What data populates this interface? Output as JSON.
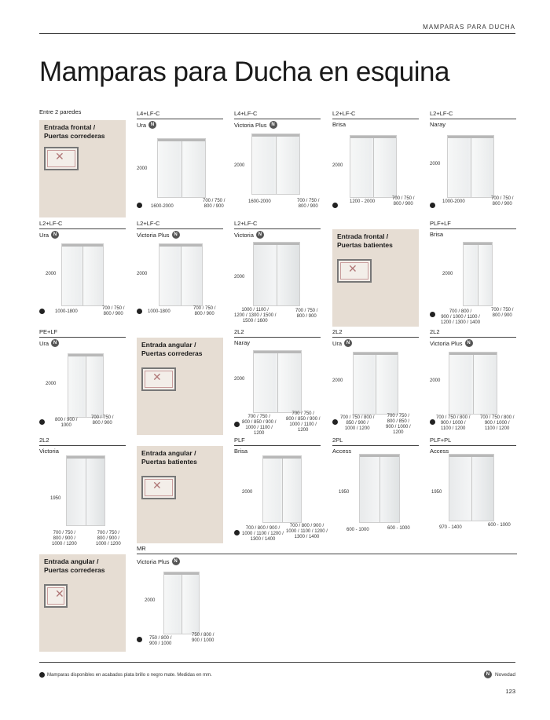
{
  "header": {
    "section": "MAMPARAS PARA DUCHA",
    "title": "Mamparas para Ducha en esquina"
  },
  "entre_label": "Entre 2 paredes",
  "boxes": {
    "b1": {
      "title": "Entrada frontal /",
      "sub": "Puertas correderas"
    },
    "b2": {
      "title": "Entrada frontal /",
      "sub": "Puertas batientes"
    },
    "b3": {
      "title": "Entrada angular /",
      "sub": "Puertas correderas"
    },
    "b4": {
      "title": "Entrada angular /",
      "sub": "Puertas batientes"
    },
    "b5": {
      "title": "Entrada angular /",
      "sub": "Puertas correderas"
    }
  },
  "cells": {
    "c1": {
      "code": "L4+LF-C",
      "model": "Ura",
      "h": "2000",
      "w": "1600-2000",
      "d": "700 / 750 /\n800 / 900"
    },
    "c2": {
      "code": "L4+LF-C",
      "model": "Victoria Plus",
      "h": "2000",
      "w": "1600-2000",
      "d": "700 / 750 /\n800 / 900"
    },
    "c3": {
      "code": "L2+LF-C",
      "model": "Brisa",
      "h": "2000",
      "w": "1200 - 2000",
      "d": "700 / 750 /\n800 / 900"
    },
    "c4": {
      "code": "L2+LF-C",
      "model": "Naray",
      "h": "2000",
      "w": "1000-2000",
      "d": "700 / 750 /\n800 / 900"
    },
    "c5": {
      "code": "L2+LF-C",
      "model": "Ura",
      "h": "2000",
      "w": "1000-1800",
      "d": "700 / 750 /\n800 / 900"
    },
    "c6": {
      "code": "L2+LF-C",
      "model": "Victoria Plus",
      "h": "2000",
      "w": "1000-1800",
      "d": "700 / 750 /\n800 / 900"
    },
    "c7": {
      "code": "L2+LF-C",
      "model": "Victoria",
      "h": "2000",
      "w": "1000 / 1100 /\n1200 / 1300 / 1500 /\n1500 / 1600",
      "d": "700 / 750 /\n800 / 900"
    },
    "c8": {
      "code": "PLF+LF",
      "model": "Brisa",
      "h": "2000",
      "w": "700 / 800 /\n900 / 1000 / 1100 /\n1200 / 1300 / 1400",
      "d": "700 / 750 /\n800 / 900"
    },
    "c9": {
      "code": "PE+LF",
      "model": "Ura",
      "h": "2000",
      "w": "800 / 900 /\n1000",
      "d": "700 / 750 /\n800 / 900"
    },
    "c10": {
      "code": "2L2",
      "model": "Naray",
      "h": "2000",
      "w": "700 / 750 /\n800 / 850 / 900 /\n1000 / 1100 /\n1200",
      "d": "700 / 750 /\n800 / 850 / 900 /\n1000 / 1100 /\n1200"
    },
    "c11": {
      "code": "2L2",
      "model": "Ura",
      "h": "2000",
      "w": "700 / 750 / 800 /\n850 / 900 /\n1000 / 1200",
      "d": "700 / 750 /\n800 / 850 /\n900 / 1000 /\n1200"
    },
    "c12": {
      "code": "2L2",
      "model": "Victoria Plus",
      "h": "2000",
      "w": "700 / 750 / 800 /\n900 / 1000 /\n1100 / 1200",
      "d": "700 / 750 / 800 /\n900 / 1000 /\n1100 / 1200"
    },
    "c13": {
      "code": "2L2",
      "model": "Victoria",
      "h": "1950",
      "w": "700 / 750 /\n800 / 900 /\n1000 / 1200",
      "d": "700 / 750 /\n800 / 900 /\n1000 / 1200"
    },
    "c14": {
      "code": "PLF",
      "model": "Brisa",
      "h": "2000",
      "w": "700 / 800 / 900 /\n1000 / 1100 / 1200 /\n1300 / 1400",
      "d": "700 / 800 / 900 /\n1000 / 1100 / 1200 /\n1300 / 1400"
    },
    "c15": {
      "code": "2PL",
      "model": "Access",
      "h": "1950",
      "w": "600 - 1000",
      "d": "600 - 1000"
    },
    "c16": {
      "code": "PLF+PL",
      "model": "Access",
      "h": "1950",
      "w": "970 - 1400",
      "d": "600 - 1000"
    },
    "c17": {
      "code": "MR",
      "model": "Victoria Plus",
      "h": "2000",
      "w": "750 / 800 /\n900 / 1000",
      "d": "750 / 800 /\n900 / 1000"
    }
  },
  "footer": {
    "note": "Mamparas disponibles en acabados plata brillo o negro mate. Medidas en mm.",
    "novedad": "Novedad",
    "badge": "N",
    "page": "123"
  }
}
